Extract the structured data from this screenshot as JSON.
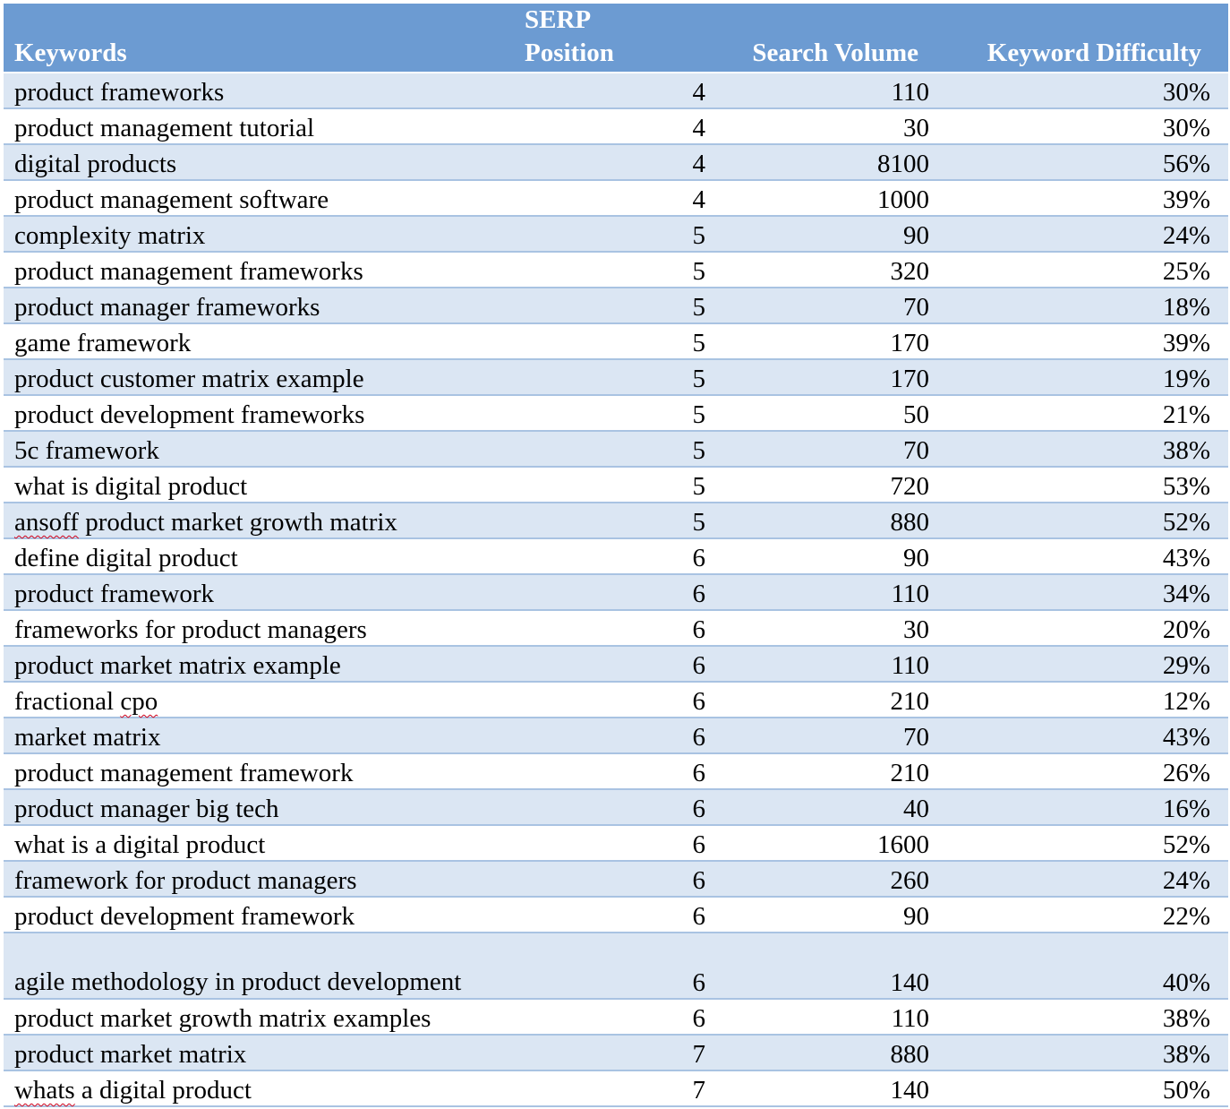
{
  "table": {
    "headers": {
      "keywords": "Keywords",
      "serp_line1": "SERP",
      "serp_line2": "Position",
      "search_volume": "Search Volume",
      "keyword_difficulty": "Keyword Difficulty"
    },
    "rows": [
      {
        "keyword": "product frameworks",
        "position": "4",
        "volume": "110",
        "difficulty": "30%"
      },
      {
        "keyword": "product management tutorial",
        "position": "4",
        "volume": "30",
        "difficulty": "30%"
      },
      {
        "keyword": "digital products",
        "position": "4",
        "volume": "8100",
        "difficulty": "56%"
      },
      {
        "keyword": "product management software",
        "position": "4",
        "volume": "1000",
        "difficulty": "39%"
      },
      {
        "keyword": "complexity matrix",
        "position": "5",
        "volume": "90",
        "difficulty": "24%"
      },
      {
        "keyword": "product management frameworks",
        "position": "5",
        "volume": "320",
        "difficulty": "25%"
      },
      {
        "keyword": "product manager frameworks",
        "position": "5",
        "volume": "70",
        "difficulty": "18%"
      },
      {
        "keyword": "game framework",
        "position": "5",
        "volume": "170",
        "difficulty": "39%"
      },
      {
        "keyword": "product customer matrix example",
        "position": "5",
        "volume": "170",
        "difficulty": "19%"
      },
      {
        "keyword": "product development frameworks",
        "position": "5",
        "volume": "50",
        "difficulty": "21%"
      },
      {
        "keyword": "5c framework",
        "position": "5",
        "volume": "70",
        "difficulty": "38%"
      },
      {
        "keyword": "what is digital product",
        "position": "5",
        "volume": "720",
        "difficulty": "53%"
      },
      {
        "keyword_spell": "ansoff",
        "keyword_rest": " product market growth matrix",
        "position": "5",
        "volume": "880",
        "difficulty": "52%"
      },
      {
        "keyword": "define digital product",
        "position": "6",
        "volume": "90",
        "difficulty": "43%"
      },
      {
        "keyword": "product framework",
        "position": "6",
        "volume": "110",
        "difficulty": "34%"
      },
      {
        "keyword": "frameworks for product managers",
        "position": "6",
        "volume": "30",
        "difficulty": "20%"
      },
      {
        "keyword": "product market matrix example",
        "position": "6",
        "volume": "110",
        "difficulty": "29%"
      },
      {
        "keyword_pre": "fractional ",
        "keyword_spell": "cpo",
        "position": "6",
        "volume": "210",
        "difficulty": "12%"
      },
      {
        "keyword": "market matrix",
        "position": "6",
        "volume": "70",
        "difficulty": "43%"
      },
      {
        "keyword": "product management framework",
        "position": "6",
        "volume": "210",
        "difficulty": "26%"
      },
      {
        "keyword": "product manager big tech",
        "position": "6",
        "volume": "40",
        "difficulty": "16%"
      },
      {
        "keyword": "what is a digital product",
        "position": "6",
        "volume": "1600",
        "difficulty": "52%"
      },
      {
        "keyword": "framework for product managers",
        "position": "6",
        "volume": "260",
        "difficulty": "24%"
      },
      {
        "keyword": "product development framework",
        "position": "6",
        "volume": "90",
        "difficulty": "22%"
      },
      {
        "keyword": "agile methodology in product development",
        "position": "6",
        "volume": "140",
        "difficulty": "40%"
      },
      {
        "keyword": "product market growth matrix examples",
        "position": "6",
        "volume": "110",
        "difficulty": "38%"
      },
      {
        "keyword": "product market matrix",
        "position": "7",
        "volume": "880",
        "difficulty": "38%"
      },
      {
        "keyword_spell": "whats",
        "keyword_rest": " a digital product",
        "position": "7",
        "volume": "140",
        "difficulty": "50%"
      }
    ]
  }
}
